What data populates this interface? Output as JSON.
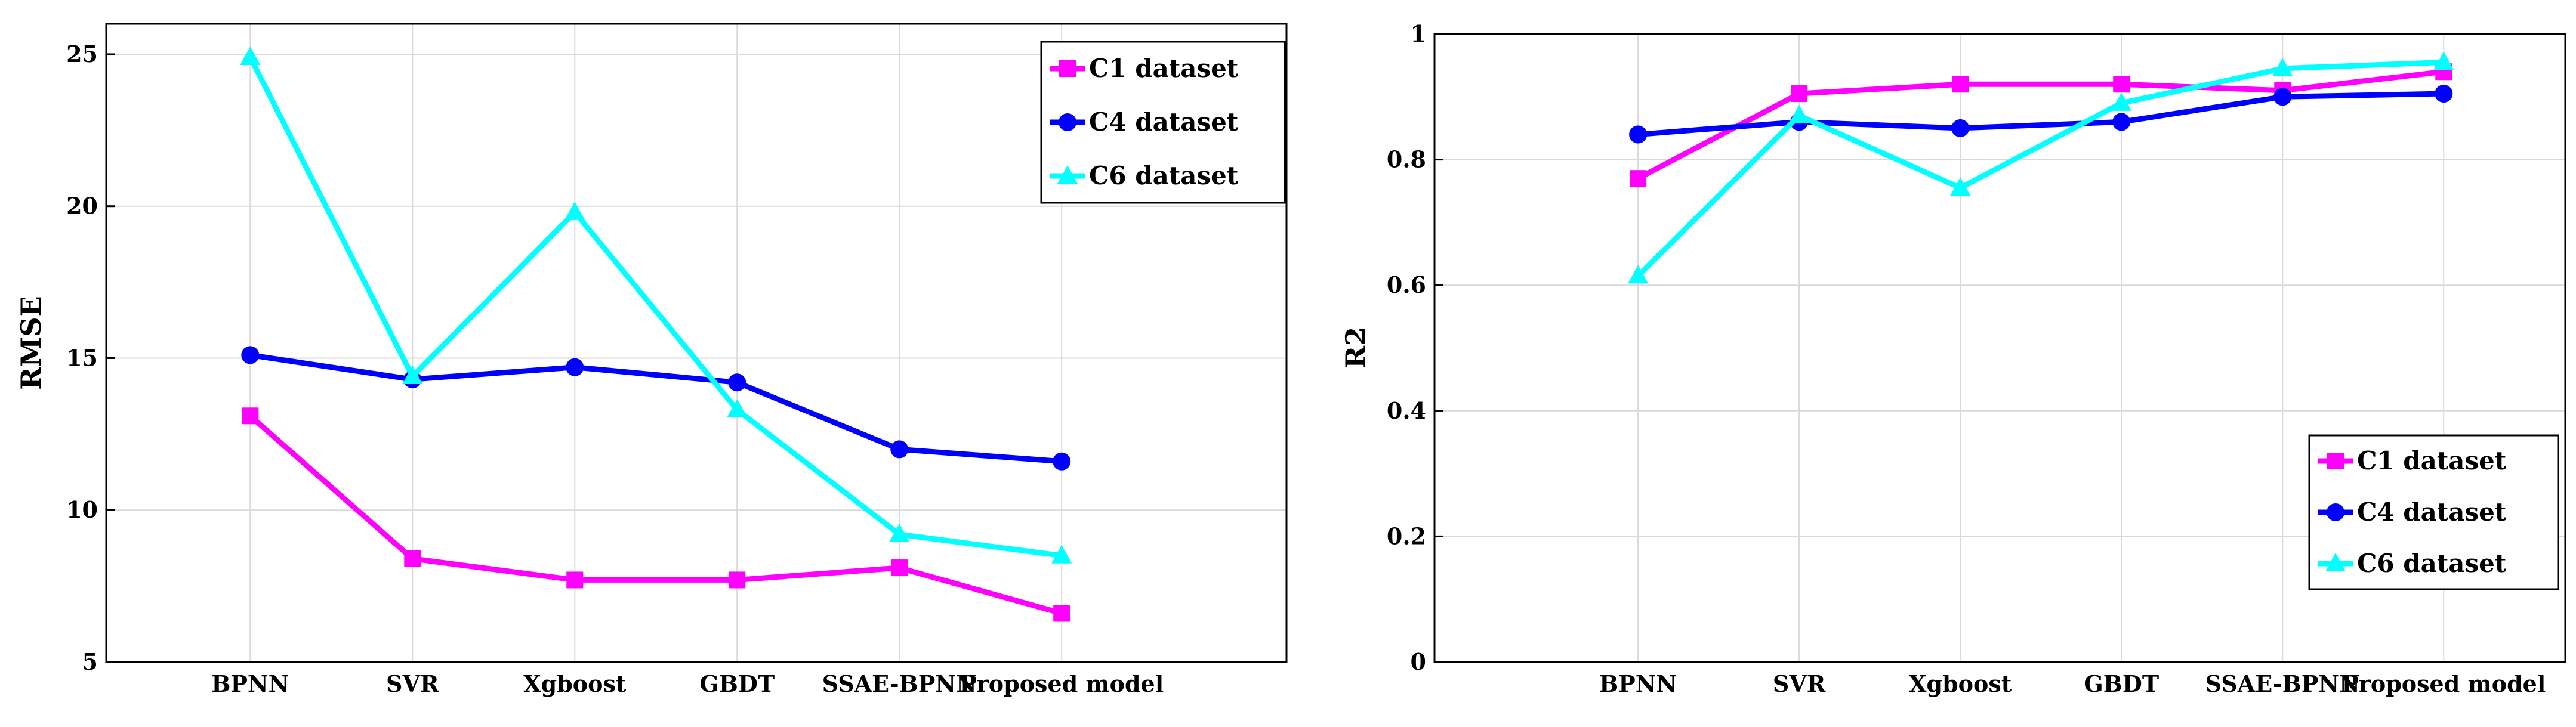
{
  "chart_data": [
    {
      "type": "line",
      "title": "",
      "xlabel": "",
      "ylabel": "RMSE",
      "categories": [
        "BPNN",
        "SVR",
        "Xgboost",
        "GBDT",
        "SSAE-BPNN",
        "Proposed model"
      ],
      "ylim": [
        5,
        26
      ],
      "yticks": [
        5,
        10,
        15,
        20,
        25
      ],
      "grid": true,
      "legend_position": "top-right",
      "series": [
        {
          "name": "C1 dataset",
          "color": "#ff00ff",
          "marker": "square",
          "values": [
            13.1,
            8.4,
            7.7,
            7.7,
            8.1,
            6.6
          ]
        },
        {
          "name": "C4 dataset",
          "color": "#0000ff",
          "marker": "circle",
          "values": [
            15.1,
            14.3,
            14.7,
            14.2,
            12.0,
            11.6
          ]
        },
        {
          "name": "C6 dataset",
          "color": "#00ffff",
          "marker": "triangle",
          "values": [
            24.9,
            14.4,
            19.8,
            13.3,
            9.2,
            8.5
          ]
        }
      ]
    },
    {
      "type": "line",
      "title": "",
      "xlabel": "",
      "ylabel": "R2",
      "categories": [
        "BPNN",
        "SVR",
        "Xgboost",
        "GBDT",
        "SSAE-BPNN",
        "Proposed model"
      ],
      "ylim": [
        0,
        1
      ],
      "yticks": [
        0,
        0.2,
        0.4,
        0.6,
        0.8,
        1
      ],
      "grid": true,
      "legend_position": "bottom-right",
      "series": [
        {
          "name": "C1 dataset",
          "color": "#ff00ff",
          "marker": "square",
          "values": [
            0.77,
            0.905,
            0.92,
            0.92,
            0.91,
            0.94
          ]
        },
        {
          "name": "C4 dataset",
          "color": "#0000ff",
          "marker": "circle",
          "values": [
            0.84,
            0.86,
            0.85,
            0.86,
            0.9,
            0.905
          ]
        },
        {
          "name": "C6 dataset",
          "color": "#00ffff",
          "marker": "triangle",
          "values": [
            0.615,
            0.87,
            0.755,
            0.89,
            0.945,
            0.955
          ]
        }
      ]
    }
  ]
}
